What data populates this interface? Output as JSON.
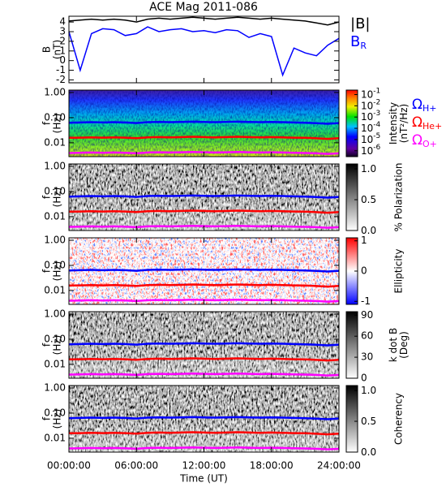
{
  "chart_data": [
    {
      "type": "line",
      "title": "ACE Mag 2011-086",
      "ylabel": [
        "B",
        "(nT)"
      ],
      "x": [
        0,
        1,
        2,
        3,
        4,
        5,
        6,
        7,
        8,
        9,
        10,
        11,
        12,
        13,
        14,
        15,
        16,
        17,
        18,
        19,
        20,
        21,
        22,
        23,
        24
      ],
      "xlim": [
        0,
        24
      ],
      "ylim": [
        -2.3,
        4.6
      ],
      "yticks": [
        -2,
        -1,
        0,
        1,
        2,
        3,
        4
      ],
      "series": [
        {
          "name": "|B|",
          "color": "#000000",
          "values": [
            4.1,
            4.2,
            4.3,
            4.2,
            4.3,
            4.2,
            4.0,
            4.3,
            4.4,
            4.3,
            4.4,
            4.5,
            4.4,
            4.3,
            4.4,
            4.5,
            4.4,
            4.3,
            4.4,
            4.3,
            4.2,
            4.1,
            3.9,
            3.7,
            4.0
          ]
        },
        {
          "name": "B",
          "sub": "R",
          "color": "#0000ff",
          "values": [
            3.0,
            -1.0,
            2.8,
            3.3,
            3.2,
            2.6,
            2.8,
            3.5,
            3.0,
            3.2,
            3.3,
            3.0,
            3.1,
            2.9,
            3.2,
            3.1,
            2.4,
            2.8,
            2.5,
            -1.5,
            1.3,
            0.8,
            0.5,
            1.6,
            2.3
          ]
        }
      ]
    },
    {
      "type": "spectrogram",
      "ylabel": [
        "f",
        "(Hz)"
      ],
      "log": true,
      "colormap": "rainbow",
      "x": [
        0,
        1,
        2,
        3,
        4,
        5,
        6,
        7,
        8,
        9,
        10,
        11,
        12,
        13,
        14,
        15,
        16,
        17,
        18,
        19,
        20,
        21,
        22,
        23,
        24
      ],
      "xlim": [
        0,
        24
      ],
      "ylim": [
        0.0028,
        1.25
      ],
      "yticks": [
        {
          "value": 1,
          "label": "1.00"
        },
        {
          "value": 0.1,
          "label": "0.10"
        },
        {
          "value": 0.01,
          "label": "0.01"
        }
      ],
      "colorbar_label": [
        "Intensity",
        "(nT²/Hz)"
      ],
      "clog": true,
      "clim": [
        3e-07,
        0.25
      ],
      "cticks": [
        {
          "value": 0.1,
          "label": "10",
          "exponent": "-1"
        },
        {
          "value": 0.01,
          "label": "10",
          "exponent": "-2"
        },
        {
          "value": 0.001,
          "label": "10",
          "exponent": "-3"
        },
        {
          "value": 0.0001,
          "label": "10",
          "exponent": "-4"
        },
        {
          "value": 1e-05,
          "label": "10",
          "exponent": "-5"
        },
        {
          "value": 1e-06,
          "label": "10",
          "exponent": "-6"
        }
      ],
      "series": [
        {
          "name": "Ω",
          "sub": "H+",
          "color": "#0000ff",
          "values": [
            0.063,
            0.064,
            0.066,
            0.064,
            0.066,
            0.064,
            0.061,
            0.066,
            0.067,
            0.066,
            0.067,
            0.069,
            0.067,
            0.066,
            0.067,
            0.069,
            0.067,
            0.066,
            0.067,
            0.066,
            0.064,
            0.063,
            0.06,
            0.057,
            0.061
          ]
        },
        {
          "name": "Ω",
          "sub": "He+",
          "color": "#ff0000",
          "values": [
            0.0158,
            0.016,
            0.0165,
            0.016,
            0.0165,
            0.016,
            0.0153,
            0.0165,
            0.0168,
            0.0165,
            0.0168,
            0.0173,
            0.0168,
            0.0165,
            0.0168,
            0.0173,
            0.0168,
            0.0165,
            0.0168,
            0.0165,
            0.016,
            0.0158,
            0.015,
            0.0143,
            0.0153
          ]
        },
        {
          "name": "Ω",
          "sub": "O+",
          "color": "#ff00ff",
          "values": [
            0.0039,
            0.004,
            0.0041,
            0.004,
            0.0041,
            0.004,
            0.0038,
            0.0041,
            0.0042,
            0.0041,
            0.0042,
            0.0043,
            0.0042,
            0.0041,
            0.0042,
            0.0043,
            0.0042,
            0.0041,
            0.0042,
            0.0041,
            0.004,
            0.0039,
            0.0038,
            0.0036,
            0.0038
          ]
        }
      ]
    },
    {
      "type": "spectrogram",
      "ylabel": [
        "f",
        "(Hz)"
      ],
      "log": true,
      "colormap": "gray",
      "xlim": [
        0,
        24
      ],
      "ylim": [
        0.0028,
        1.25
      ],
      "yticks": [
        {
          "value": 1,
          "label": "1.00"
        },
        {
          "value": 0.1,
          "label": "0.10"
        },
        {
          "value": 0.01,
          "label": "0.01"
        }
      ],
      "colorbar_label": [
        "% Polarization"
      ],
      "clim": [
        0,
        1.08
      ],
      "cticks": [
        {
          "value": 0,
          "label": "0.0"
        },
        {
          "value": 0.5,
          "label": "0.5"
        },
        {
          "value": 1,
          "label": "1.0"
        }
      ]
    },
    {
      "type": "spectrogram",
      "ylabel": [
        "f",
        "(Hz)"
      ],
      "log": true,
      "colormap": "bwr",
      "xlim": [
        0,
        24
      ],
      "ylim": [
        0.0028,
        1.25
      ],
      "yticks": [
        {
          "value": 1,
          "label": "1.00"
        },
        {
          "value": 0.1,
          "label": "0.10"
        },
        {
          "value": 0.01,
          "label": "0.01"
        }
      ],
      "colorbar_label": [
        "Ellipticity"
      ],
      "clim": [
        -1.1,
        1.1
      ],
      "cticks": [
        -1,
        0,
        1
      ]
    },
    {
      "type": "spectrogram",
      "ylabel": [
        "f",
        "(Hz)"
      ],
      "log": true,
      "colormap": "gray",
      "xlim": [
        0,
        24
      ],
      "ylim": [
        0.0028,
        1.25
      ],
      "yticks": [
        {
          "value": 1,
          "label": "1.00"
        },
        {
          "value": 0.1,
          "label": "0.10"
        },
        {
          "value": 0.01,
          "label": "0.01"
        }
      ],
      "colorbar_label": [
        "k dot B",
        "(Deg)"
      ],
      "clim": [
        0,
        95
      ],
      "cticks": [
        0,
        30,
        60,
        90
      ]
    },
    {
      "type": "spectrogram",
      "ylabel": [
        "f",
        "(Hz)"
      ],
      "log": true,
      "colormap": "gray",
      "xlim": [
        0,
        24
      ],
      "ylim": [
        0.0028,
        1.25
      ],
      "yticks": [
        {
          "value": 1,
          "label": "1.00"
        },
        {
          "value": 0.1,
          "label": "0.10"
        },
        {
          "value": 0.01,
          "label": "0.01"
        }
      ],
      "colorbar_label": [
        "Coherency"
      ],
      "clim": [
        0,
        1.08
      ],
      "cticks": [
        {
          "value": 0,
          "label": "0.0"
        },
        {
          "value": 0.5,
          "label": "0.5"
        },
        {
          "value": 1,
          "label": "1.0"
        }
      ],
      "xlabel": "Time (UT)",
      "xticks": [
        {
          "value": 0,
          "label": "00:00:00"
        },
        {
          "value": 6,
          "label": "06:00:00"
        },
        {
          "value": 12,
          "label": "12:00:00"
        },
        {
          "value": 18,
          "label": "18:00:00"
        },
        {
          "value": 24,
          "label": "24:00:00"
        }
      ]
    }
  ]
}
